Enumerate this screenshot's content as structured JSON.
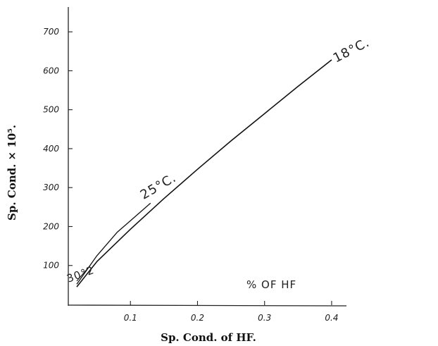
{
  "chart_data": {
    "type": "line",
    "title": "",
    "xlabel": "Sp. Cond. of HF.",
    "ylabel": "Sp. Cond. × 10⁵.",
    "xlim": [
      0,
      0.42
    ],
    "ylim": [
      0,
      760
    ],
    "x_ticks": [
      0.1,
      0.2,
      0.3,
      0.4
    ],
    "x_tick_labels": [
      "0.1",
      "0.2",
      "0.3",
      "0.4"
    ],
    "y_ticks": [
      100,
      200,
      300,
      400,
      500,
      600,
      700
    ],
    "y_tick_labels": [
      "100",
      "200",
      "300",
      "400",
      "500",
      "600",
      "700"
    ],
    "grid": false,
    "series": [
      {
        "name": "18°C.",
        "x": [
          0.02,
          0.05,
          0.1,
          0.15,
          0.2,
          0.25,
          0.3,
          0.35,
          0.4
        ],
        "y": [
          45,
          110,
          193,
          272,
          347,
          420,
          490,
          560,
          628
        ]
      },
      {
        "name": "25°C.",
        "x": [
          0.02,
          0.05,
          0.08,
          0.1,
          0.13
        ],
        "y": [
          52,
          125,
          185,
          215,
          260
        ]
      },
      {
        "name": "30°2",
        "x": [
          0.02,
          0.04
        ],
        "y": [
          60,
          100
        ]
      }
    ],
    "annotations": [
      "% OF HF"
    ]
  }
}
